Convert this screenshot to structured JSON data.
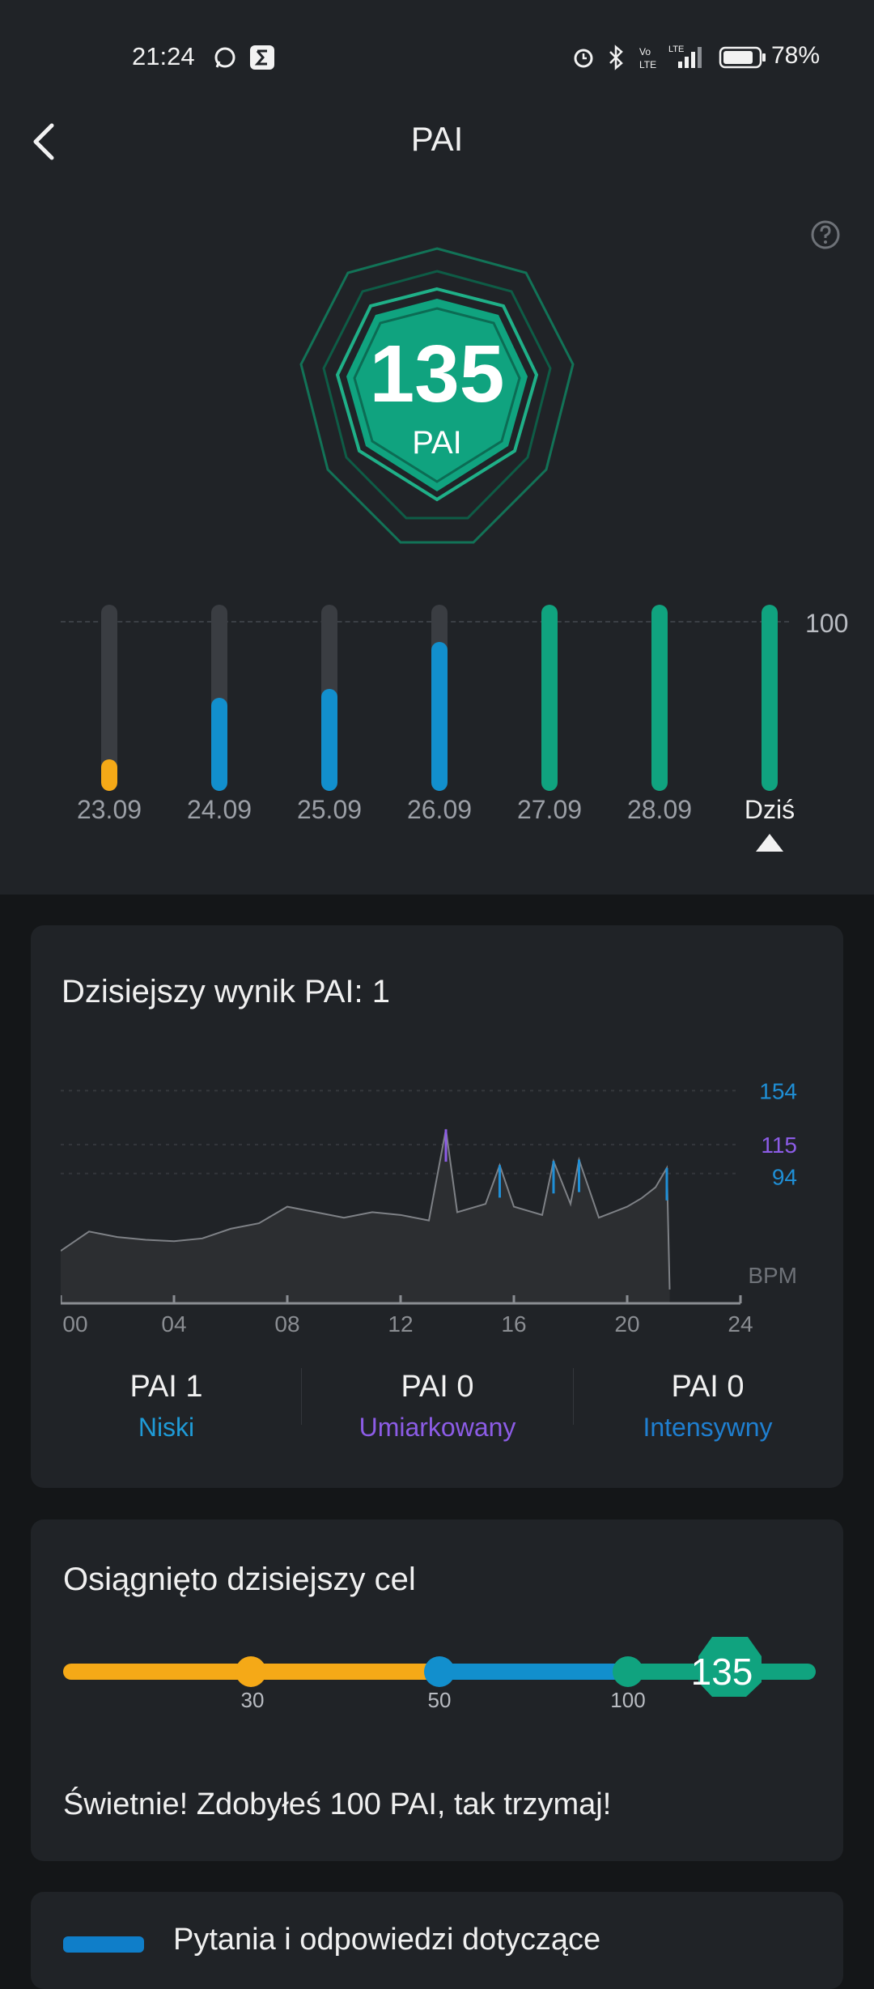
{
  "status_bar": {
    "time": "21:24",
    "battery": "78%",
    "icons": [
      "whatsapp-icon",
      "sigma-app-icon",
      "alarm-icon",
      "bluetooth-icon",
      "volte-icon",
      "lte-signal-icon",
      "battery-icon"
    ]
  },
  "header": {
    "title": "PAI",
    "back_icon": "chevron-left-icon",
    "help_icon": "question-circle-icon"
  },
  "score": {
    "value": "135",
    "unit": "PAI"
  },
  "week": {
    "reference_label": "100",
    "days": [
      {
        "label": "23.09",
        "fraction": 0.17,
        "color": "#f5a917"
      },
      {
        "label": "24.09",
        "fraction": 0.5,
        "color": "#128fcd"
      },
      {
        "label": "25.09",
        "fraction": 0.55,
        "color": "#128fcd"
      },
      {
        "label": "26.09",
        "fraction": 0.8,
        "color": "#128fcd"
      },
      {
        "label": "27.09",
        "fraction": 1.0,
        "color": "#10a37f"
      },
      {
        "label": "28.09",
        "fraction": 1.0,
        "color": "#10a37f"
      },
      {
        "label": "Dziś",
        "fraction": 1.0,
        "color": "#10a37f"
      }
    ]
  },
  "today_card": {
    "title": "Dzisiejszy wynik PAI: 1",
    "chart_data": {
      "type": "area",
      "x": [
        0,
        1,
        2,
        3,
        4,
        5,
        6,
        7,
        8,
        9,
        10,
        11,
        12,
        13,
        13.6,
        14,
        15,
        15.5,
        16,
        17,
        17.4,
        18,
        18.3,
        19,
        20,
        20.5,
        21,
        21.4,
        21.5
      ],
      "y": [
        38,
        52,
        48,
        46,
        45,
        47,
        54,
        58,
        70,
        66,
        62,
        66,
        64,
        60,
        126,
        66,
        72,
        100,
        70,
        64,
        103,
        72,
        104,
        62,
        70,
        76,
        84,
        98,
        10
      ],
      "ylim": [
        0,
        170
      ],
      "xlim": [
        0,
        24
      ],
      "x_ticks": [
        "00",
        "04",
        "08",
        "12",
        "16",
        "20",
        "24"
      ],
      "y_labels": [
        {
          "value": 154,
          "text": "154",
          "color": "#1f8fd6"
        },
        {
          "value": 115,
          "text": "115",
          "color": "#8c5ce6"
        },
        {
          "value": 94,
          "text": "94",
          "color": "#1f8fd6"
        }
      ],
      "unit_label": "BPM"
    },
    "stats": [
      {
        "value": "PAI 1",
        "label": "Niski",
        "color": "#1f9ad6"
      },
      {
        "value": "PAI 0",
        "label": "Umiarkowany",
        "color": "#8c5ce6"
      },
      {
        "value": "PAI 0",
        "label": "Intensywny",
        "color": "#1f7fd0"
      }
    ]
  },
  "goal_card": {
    "title": "Osiągnięto dzisiejszy cel",
    "ticks": [
      "30",
      "50",
      "100"
    ],
    "current": "135",
    "message": "Świetnie! Zdobyłeś 100 PAI, tak trzymaj!"
  },
  "faq_card": {
    "text": "Pytania i odpowiedzi dotyczące"
  },
  "colors": {
    "yellow": "#f5a917",
    "blue": "#128fcd",
    "green": "#10a37f",
    "purple": "#8c5ce6"
  }
}
